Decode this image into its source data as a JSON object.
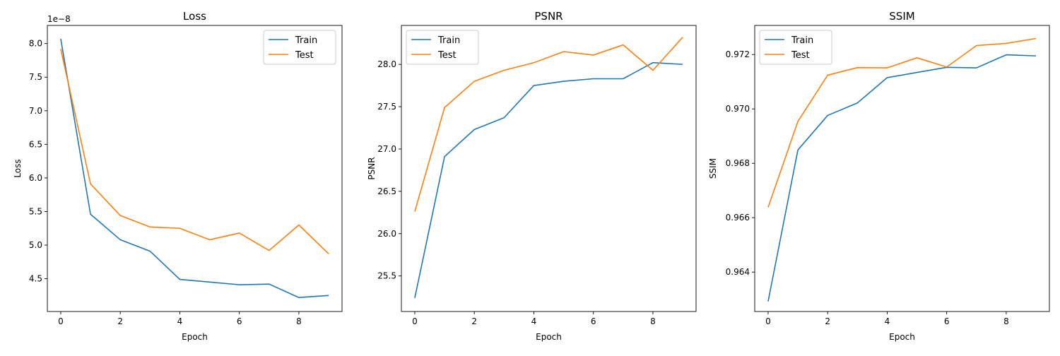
{
  "colors": {
    "train": "#1f77b4",
    "test": "#ff7f0e"
  },
  "chart_data": [
    {
      "type": "line",
      "title": "Loss",
      "xlabel": "Epoch",
      "ylabel": "Loss",
      "offset_label": "1e−8",
      "x": [
        0,
        1,
        2,
        3,
        4,
        5,
        6,
        7,
        8,
        9
      ],
      "xlim": [
        -0.45,
        9.45
      ],
      "ylim": [
        4.012,
        8.27
      ],
      "xticks": [
        0,
        2,
        4,
        6,
        8
      ],
      "yticks": [
        4.5,
        5.0,
        5.5,
        6.0,
        6.5,
        7.0,
        7.5,
        8.0
      ],
      "ytick_labels": [
        "4.5",
        "5.0",
        "5.5",
        "6.0",
        "6.5",
        "7.0",
        "7.5",
        "8.0"
      ],
      "legend": "upper right",
      "series": [
        {
          "name": "Train",
          "color_key": "train",
          "values": [
            8.07,
            5.46,
            5.08,
            4.91,
            4.49,
            4.45,
            4.41,
            4.42,
            4.22,
            4.25
          ]
        },
        {
          "name": "Test",
          "color_key": "test",
          "values": [
            7.92,
            5.91,
            5.44,
            5.27,
            5.25,
            5.08,
            5.18,
            4.92,
            5.3,
            4.87
          ]
        }
      ]
    },
    {
      "type": "line",
      "title": "PSNR",
      "xlabel": "Epoch",
      "ylabel": "PSNR",
      "x": [
        0,
        1,
        2,
        3,
        4,
        5,
        6,
        7,
        8,
        9
      ],
      "xlim": [
        -0.45,
        9.45
      ],
      "ylim": [
        25.08,
        28.46
      ],
      "xticks": [
        0,
        2,
        4,
        6,
        8
      ],
      "yticks": [
        25.5,
        26.0,
        26.5,
        27.0,
        27.5,
        28.0
      ],
      "ytick_labels": [
        "25.5",
        "26.0",
        "26.5",
        "27.0",
        "27.5",
        "28.0"
      ],
      "legend": "upper left",
      "series": [
        {
          "name": "Train",
          "color_key": "train",
          "values": [
            25.24,
            26.91,
            27.23,
            27.37,
            27.75,
            27.8,
            27.83,
            27.83,
            28.02,
            28.0
          ]
        },
        {
          "name": "Test",
          "color_key": "test",
          "values": [
            26.26,
            27.49,
            27.8,
            27.93,
            28.02,
            28.15,
            28.11,
            28.23,
            27.93,
            28.32
          ]
        }
      ]
    },
    {
      "type": "line",
      "title": "SSIM",
      "xlabel": "Epoch",
      "ylabel": "SSIM",
      "x": [
        0,
        1,
        2,
        3,
        4,
        5,
        6,
        7,
        8,
        9
      ],
      "xlim": [
        -0.45,
        9.45
      ],
      "ylim": [
        0.96255,
        0.97307
      ],
      "xticks": [
        0,
        2,
        4,
        6,
        8
      ],
      "yticks": [
        0.964,
        0.966,
        0.968,
        0.97,
        0.972
      ],
      "ytick_labels": [
        "0.964",
        "0.966",
        "0.968",
        "0.970",
        "0.972"
      ],
      "legend": "upper left",
      "series": [
        {
          "name": "Train",
          "color_key": "train",
          "values": [
            0.96292,
            0.96849,
            0.96976,
            0.97022,
            0.97115,
            0.97134,
            0.97153,
            0.97151,
            0.97199,
            0.97195
          ]
        },
        {
          "name": "Test",
          "color_key": "test",
          "values": [
            0.96638,
            0.96954,
            0.97124,
            0.97152,
            0.97151,
            0.97188,
            0.97154,
            0.97233,
            0.97241,
            0.97259
          ]
        }
      ]
    }
  ]
}
